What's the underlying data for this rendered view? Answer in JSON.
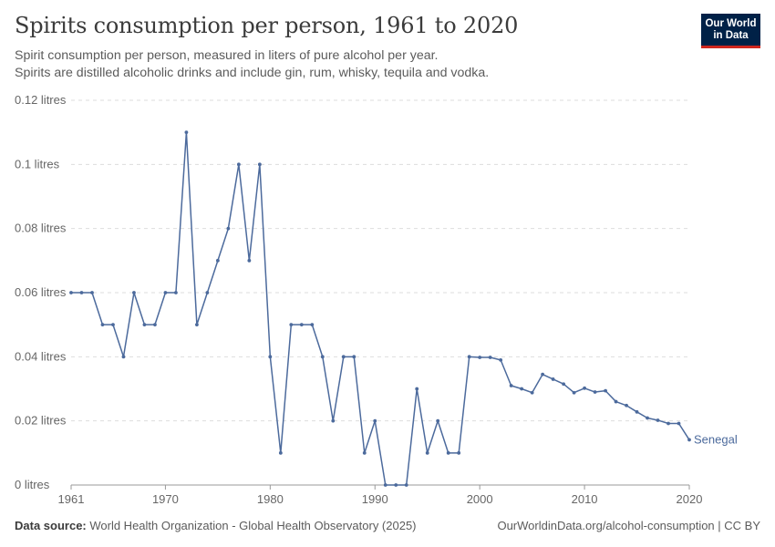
{
  "header": {
    "title": "Spirits consumption per person, 1961 to 2020",
    "subtitle_line1": "Spirit consumption per person, measured in liters of pure alcohol per year.",
    "subtitle_line2": "Spirits are distilled alcoholic drinks and include gin, rum, whisky, tequila and vodka."
  },
  "logo": {
    "line1": "Our World",
    "line2": "in Data",
    "bg_color": "#002147",
    "accent_color": "#ce261e"
  },
  "footer": {
    "source_label": "Data source:",
    "source_text": " World Health Organization - Global Health Observatory (2025)",
    "url": "OurWorldinData.org/alcohol-consumption | CC BY"
  },
  "chart_data": {
    "type": "line",
    "title": "Spirits consumption per person, 1961 to 2020",
    "xlabel": "",
    "ylabel": "",
    "xlim": [
      1961,
      2020
    ],
    "ylim": [
      0,
      0.12
    ],
    "y_ticks": [
      {
        "value": 0,
        "label": "0 litres"
      },
      {
        "value": 0.02,
        "label": "0.02 litres"
      },
      {
        "value": 0.04,
        "label": "0.04 litres"
      },
      {
        "value": 0.06,
        "label": "0.06 litres"
      },
      {
        "value": 0.08,
        "label": "0.08 litres"
      },
      {
        "value": 0.1,
        "label": "0.1 litres"
      },
      {
        "value": 0.12,
        "label": "0.12 litres"
      }
    ],
    "x_ticks": [
      {
        "value": 1961,
        "label": "1961"
      },
      {
        "value": 1970,
        "label": "1970"
      },
      {
        "value": 1980,
        "label": "1980"
      },
      {
        "value": 1990,
        "label": "1990"
      },
      {
        "value": 2000,
        "label": "2000"
      },
      {
        "value": 2010,
        "label": "2010"
      },
      {
        "value": 2020,
        "label": "2020"
      }
    ],
    "grid": "horizontal-dashed",
    "line_color": "#4c6a9c",
    "series": [
      {
        "name": "Senegal",
        "x": [
          1961,
          1962,
          1963,
          1964,
          1965,
          1966,
          1967,
          1968,
          1969,
          1970,
          1971,
          1972,
          1973,
          1974,
          1975,
          1976,
          1977,
          1978,
          1979,
          1980,
          1981,
          1982,
          1983,
          1984,
          1985,
          1986,
          1987,
          1988,
          1989,
          1990,
          1991,
          1992,
          1993,
          1994,
          1995,
          1996,
          1997,
          1998,
          1999,
          2000,
          2001,
          2002,
          2003,
          2004,
          2005,
          2006,
          2007,
          2008,
          2009,
          2010,
          2011,
          2012,
          2013,
          2014,
          2015,
          2016,
          2017,
          2018,
          2019,
          2020
        ],
        "y": [
          0.06,
          0.06,
          0.06,
          0.05,
          0.05,
          0.04,
          0.06,
          0.05,
          0.05,
          0.06,
          0.06,
          0.11,
          0.05,
          0.06,
          0.07,
          0.08,
          0.1,
          0.07,
          0.1,
          0.04,
          0.01,
          0.05,
          0.05,
          0.05,
          0.04,
          0.02,
          0.04,
          0.04,
          0.01,
          0.02,
          0,
          0,
          0,
          0.03,
          0.01,
          0.02,
          0.01,
          0.01,
          0.04,
          0.0398,
          0.0398,
          0.039,
          0.031,
          0.03,
          0.0288,
          0.0345,
          0.033,
          0.0315,
          0.0288,
          0.0302,
          0.029,
          0.0294,
          0.026,
          0.0248,
          0.0228,
          0.0209,
          0.0202,
          0.0192,
          0.0192,
          0.0141
        ]
      }
    ]
  }
}
